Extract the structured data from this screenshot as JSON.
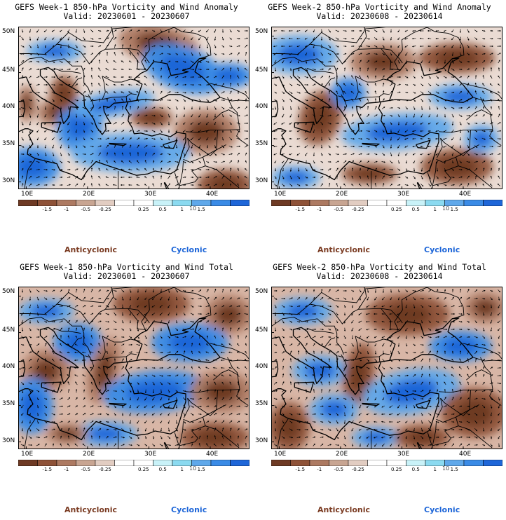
{
  "panels": [
    {
      "title_line1": "GEFS Week-1 850-hPa Vorticity and Wind Anomaly",
      "title_line2": "Valid: 20230601 - 20230607",
      "variant": 0
    },
    {
      "title_line1": "GEFS Week-2 850-hPa Vorticity and Wind Anomaly",
      "title_line2": "Valid: 20230608 - 20230614",
      "variant": 1
    },
    {
      "title_line1": "GEFS Week-1 850-hPa Vorticity and Wind Total",
      "title_line2": "Valid: 20230601 - 20230607",
      "variant": 2
    },
    {
      "title_line1": "GEFS Week-2 850-hPa Vorticity and Wind Total",
      "title_line2": "Valid: 20230608 - 20230614",
      "variant": 3
    }
  ],
  "lat_labels": [
    "50N",
    "45N",
    "40N",
    "35N",
    "30N"
  ],
  "lon_labels": [
    "10E",
    "20E",
    "30E",
    "40E"
  ],
  "colorbar": {
    "tick_labels": [
      "-1.5",
      "-1",
      "-0.5",
      "-0.25",
      "0.25",
      "0.5",
      "1",
      "1.5"
    ],
    "unit": "10",
    "colors": [
      "#6e3a24",
      "#8e5238",
      "#ad7a62",
      "#c8a592",
      "#e2cdc2",
      "#ffffff",
      "#ffffff",
      "#c9f2f8",
      "#8bdaf0",
      "#5fa8ea",
      "#3a8be6",
      "#1e66d8"
    ]
  },
  "legend": {
    "anticyclonic": "Anticyclonic",
    "cyclonic": "Cyclonic"
  },
  "colors": {
    "anticyclonic_text": "#7a3b22",
    "cyclonic_text": "#1e66d8",
    "coastline": "#000000"
  }
}
